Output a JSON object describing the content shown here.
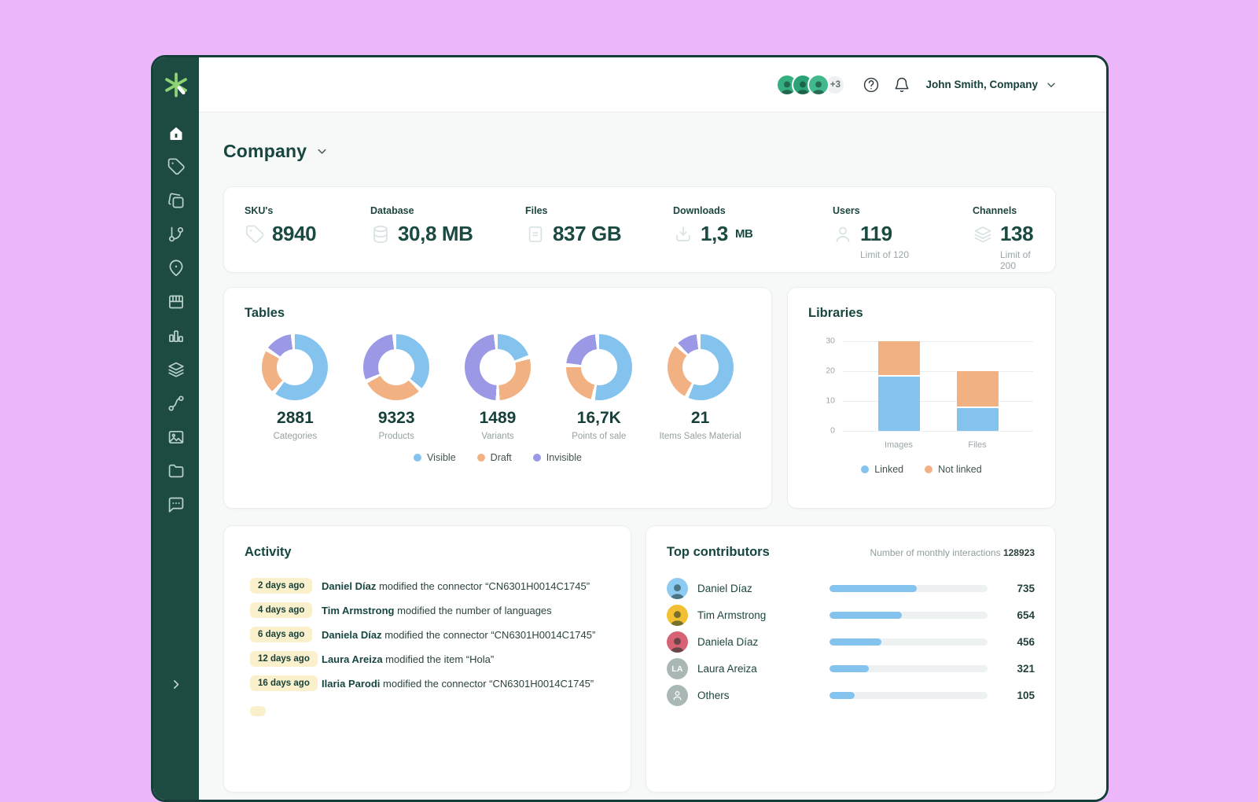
{
  "colors": {
    "background": "#ecb7fa",
    "sidebar": "#1d4b42",
    "logo_green": "#8fd473",
    "accent_dark": "#174540",
    "blue": "#85c3ef",
    "orange": "#f2b183",
    "purple": "#9b99e6",
    "badge_yellow": "#faf1cc",
    "bar_track": "#eef1f1"
  },
  "sidebar": {
    "logo": "asterisk-logo",
    "items": [
      {
        "icon": "home",
        "active": true
      },
      {
        "icon": "tag",
        "active": false
      },
      {
        "icon": "cards",
        "active": false
      },
      {
        "icon": "git-branch",
        "active": false
      },
      {
        "icon": "map-pin",
        "active": false
      },
      {
        "icon": "storefront",
        "active": false
      },
      {
        "icon": "bar-chart",
        "active": false
      },
      {
        "icon": "layers",
        "active": false
      },
      {
        "icon": "link",
        "active": false
      },
      {
        "icon": "image",
        "active": false
      },
      {
        "icon": "folder",
        "active": false
      },
      {
        "icon": "chat",
        "active": false
      }
    ]
  },
  "topbar": {
    "avatars": [
      {
        "color": "#35ae80"
      },
      {
        "color": "#2ca277"
      },
      {
        "color": "#41b98c"
      }
    ],
    "overflow": "+3",
    "user_label": "John Smith, Company"
  },
  "page": {
    "title": "Company"
  },
  "stats": {
    "items": [
      {
        "label": "SKU's",
        "icon": "tag",
        "value": "8940",
        "unit": "",
        "sublabel": ""
      },
      {
        "label": "Database",
        "icon": "database",
        "value": "30,8 MB",
        "unit": "",
        "sublabel": ""
      },
      {
        "label": "Files",
        "icon": "file",
        "value": "837 GB",
        "unit": "",
        "sublabel": ""
      },
      {
        "label": "Downloads",
        "icon": "download",
        "value": "1,3",
        "unit": "MB",
        "sublabel": ""
      },
      {
        "label": "Users",
        "icon": "user",
        "value": "119",
        "unit": "",
        "sublabel": "Limit of 120"
      },
      {
        "label": "Channels",
        "icon": "layers",
        "value": "138",
        "unit": "",
        "sublabel": "Limit of 200"
      }
    ]
  },
  "chart_data": [
    {
      "id": "tables-donuts",
      "type": "pie",
      "title": "Tables",
      "legend": [
        {
          "label": "Visible",
          "color": "#85c3ef"
        },
        {
          "label": "Draft",
          "color": "#f2b183"
        },
        {
          "label": "Invisible",
          "color": "#9b99e6"
        }
      ],
      "donuts": [
        {
          "label": "Categories",
          "total": "2881",
          "segments": [
            60,
            21,
            13
          ]
        },
        {
          "label": "Products",
          "total": "9323",
          "segments": [
            36,
            29,
            29
          ]
        },
        {
          "label": "Variants",
          "total": "1489",
          "segments": [
            19,
            28,
            47
          ]
        },
        {
          "label": "Points of sale",
          "total": "16,7K",
          "segments": [
            52,
            21,
            21
          ]
        },
        {
          "label": "Items Sales Material",
          "total": "21",
          "segments": [
            56,
            28,
            10
          ]
        }
      ]
    },
    {
      "id": "libraries-bars",
      "type": "bar",
      "stacked": true,
      "title": "Libraries",
      "categories": [
        "Images",
        "Files"
      ],
      "series": [
        {
          "name": "Linked",
          "color": "#85c3ef",
          "values": [
            18.5,
            8
          ]
        },
        {
          "name": "Not linked",
          "color": "#f2b183",
          "values": [
            11.5,
            12
          ]
        }
      ],
      "ylim": [
        0,
        30
      ],
      "yticks": [
        0,
        10,
        20,
        30
      ],
      "grid": true,
      "legend_position": "bottom"
    }
  ],
  "activity": {
    "title": "Activity",
    "items": [
      {
        "time": "2 days ago",
        "actor": "Daniel Díaz",
        "action": "modified the connector “CN6301H0014C1745”"
      },
      {
        "time": "4 days ago",
        "actor": "Tim Armstrong",
        "action": "modified the number of languages"
      },
      {
        "time": "6 days ago",
        "actor": "Daniela Díaz",
        "action": "modified the connector “CN6301H0014C1745”"
      },
      {
        "time": "12 days ago",
        "actor": "Laura Areiza",
        "action": "modified the item “Hola”"
      },
      {
        "time": "16 days ago",
        "actor": "Ilaria Parodi",
        "action": "modified the connector “CN6301H0014C1745”"
      },
      {
        "time": "",
        "actor": "",
        "action": "",
        "partial": true
      }
    ]
  },
  "contributors": {
    "title": "Top contributors",
    "subtitle": "Number of monthly interactions",
    "subtitle_value": "128923",
    "bar_color": "#85c3ef",
    "rows": [
      {
        "name": "Daniel Díaz",
        "value": "735",
        "percent": 55,
        "avatar": {
          "type": "photo",
          "color": "#8ecbf3"
        }
      },
      {
        "name": "Tim Armstrong",
        "value": "654",
        "percent": 46,
        "avatar": {
          "type": "photo",
          "color": "#f3c033"
        }
      },
      {
        "name": "Daniela Díaz",
        "value": "456",
        "percent": 33,
        "avatar": {
          "type": "photo",
          "color": "#d66273"
        }
      },
      {
        "name": "Laura Areiza",
        "value": "321",
        "percent": 25,
        "avatar": {
          "type": "initials",
          "text": "LA",
          "color": "#a9b8b5"
        }
      },
      {
        "name": "Others",
        "value": "105",
        "percent": 16,
        "avatar": {
          "type": "icon",
          "icon": "user",
          "color": "#a9b8b5"
        }
      }
    ]
  }
}
